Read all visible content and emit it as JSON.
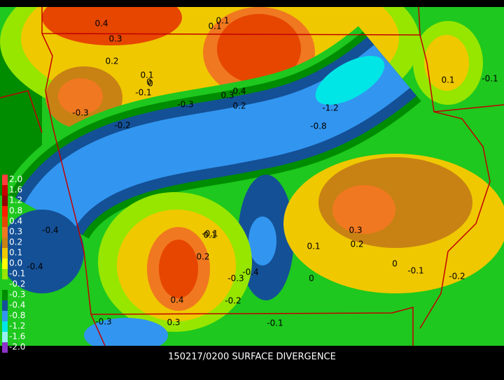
{
  "caption": "150217/0200 SURFACE DIVERGENCE",
  "legend": [
    {
      "label": "2.0",
      "color": "#ff3c3c"
    },
    {
      "label": "1.6",
      "color": "#c80000"
    },
    {
      "label": "1.2",
      "color": "#960000"
    },
    {
      "label": "0.8",
      "color": "#ff1e00"
    },
    {
      "label": "0.4",
      "color": "#e64600"
    },
    {
      "label": "0.3",
      "color": "#f07820"
    },
    {
      "label": "0.2",
      "color": "#c88214"
    },
    {
      "label": "0.1",
      "color": "#f0c800"
    },
    {
      "label": "0.0",
      "color": "#ffff00"
    },
    {
      "label": "-0.1",
      "color": "#96e600"
    },
    {
      "label": "-0.2",
      "color": "#1ec81e"
    },
    {
      "label": "-0.3",
      "color": "#008c00"
    },
    {
      "label": "-0.4",
      "color": "#145096"
    },
    {
      "label": "-0.8",
      "color": "#3296f0"
    },
    {
      "label": "-1.2",
      "color": "#00e6e6"
    },
    {
      "label": "-1.6",
      "color": "#96f0f0"
    },
    {
      "label": "-2.0",
      "color": "#8c32c8"
    }
  ],
  "contour_labels": [
    "0.4",
    "0.3",
    "0.2",
    "0.1",
    "0",
    "-0.1",
    "-0.3",
    "-0.2",
    "0",
    "0.1",
    "0.4",
    "0.3",
    "0.2",
    "-0.3",
    "-1.2",
    "-0.8",
    "-0.4",
    "-0.4",
    "0.1",
    "-0.1",
    "0.3",
    "0.2",
    "0.1",
    "0.2",
    "-0.3",
    "-0.4",
    "0.4",
    "-0.2",
    "0.3",
    "-0.3",
    "-0.1",
    "0",
    "-0.1",
    "-0.2",
    "0",
    "0.1",
    "0.1",
    "-0.1"
  ]
}
